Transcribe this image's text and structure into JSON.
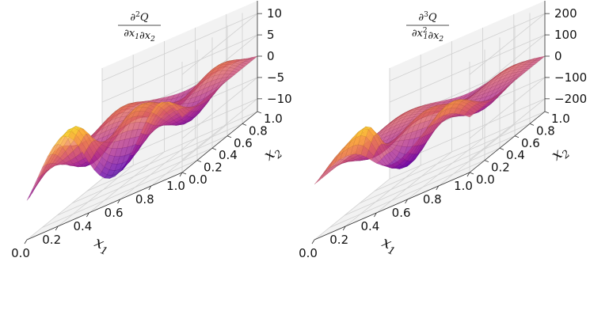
{
  "chart_data": [
    {
      "type": "surface3d",
      "title": {
        "fraction": true,
        "numerator": {
          "base": "∂",
          "sup": "2",
          "var": "Q"
        },
        "denominator": [
          {
            "base": "∂x",
            "sub": "1"
          },
          {
            "base": "∂x",
            "sub": "2"
          }
        ]
      },
      "xlabel": "x",
      "xlabel_sub": "1",
      "ylabel": "x",
      "ylabel_sub": "2",
      "x_ticks": [
        "0.0",
        "0.2",
        "0.4",
        "0.6",
        "0.8",
        "1.0"
      ],
      "y_ticks": [
        "0.0",
        "0.2",
        "0.4",
        "0.6",
        "0.8",
        "1.0"
      ],
      "z_ticks": [
        "−10",
        "−5",
        "0",
        "5",
        "10"
      ],
      "x_range": [
        0,
        1
      ],
      "y_range": [
        0,
        1
      ],
      "z_range": [
        -13,
        13
      ],
      "colormap": "plasma",
      "grid": true
    },
    {
      "type": "surface3d",
      "title": {
        "fraction": true,
        "numerator": {
          "base": "∂",
          "sup": "3",
          "var": "Q"
        },
        "denominator": [
          {
            "base": "∂x",
            "sub": "1",
            "sup": "2"
          },
          {
            "base": "∂x",
            "sub": "2"
          }
        ]
      },
      "xlabel": "x",
      "xlabel_sub": "1",
      "ylabel": "x",
      "ylabel_sub": "2",
      "x_ticks": [
        "0.0",
        "0.2",
        "0.4",
        "0.6",
        "0.8",
        "1.0"
      ],
      "y_ticks": [
        "0.0",
        "0.2",
        "0.4",
        "0.6",
        "0.8",
        "1.0"
      ],
      "z_ticks": [
        "−200",
        "−100",
        "0",
        "100",
        "200"
      ],
      "x_range": [
        0,
        1
      ],
      "y_range": [
        0,
        1
      ],
      "z_range": [
        -260,
        260
      ],
      "colormap": "plasma",
      "grid": true
    }
  ],
  "colors": {
    "pane": "#f2f2f2",
    "pane_side": "#ebebeb",
    "grid": "#d0d0d0",
    "colormap_stops": [
      "#0d0887",
      "#6a00a8",
      "#b12a90",
      "#e16462",
      "#fca636",
      "#f0f921"
    ]
  }
}
